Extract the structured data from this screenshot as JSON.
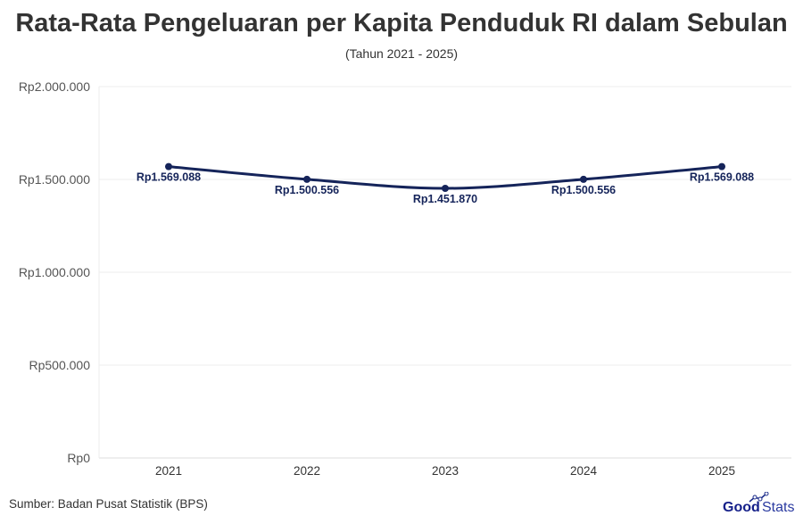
{
  "chart_data": {
    "type": "line",
    "title": "Rata-Rata Pengeluaran per Kapita Penduduk RI dalam Sebulan",
    "subtitle": "(Tahun 2021 - 2025)",
    "categories": [
      "2021",
      "2022",
      "2023",
      "2024",
      "2025"
    ],
    "values": [
      1569088,
      1500556,
      1451870,
      1500556,
      1569088
    ],
    "data_labels": [
      "Rp1.569.088",
      "Rp1.500.556",
      "Rp1.451.870",
      "Rp1.500.556",
      "Rp1.569.088"
    ],
    "ylim": [
      0,
      2000000
    ],
    "yticks": [
      0,
      500000,
      1000000,
      1500000,
      2000000
    ],
    "ytick_labels": [
      "Rp0",
      "Rp500.000",
      "Rp1.000.000",
      "Rp1.500.000",
      "Rp2.000.000"
    ],
    "xlabel": "",
    "ylabel": "",
    "grid": true,
    "line_color": "#15245a"
  },
  "footer": {
    "source": "Sumber: Badan Pusat Statistik (BPS)",
    "logo": "GoodStats"
  }
}
